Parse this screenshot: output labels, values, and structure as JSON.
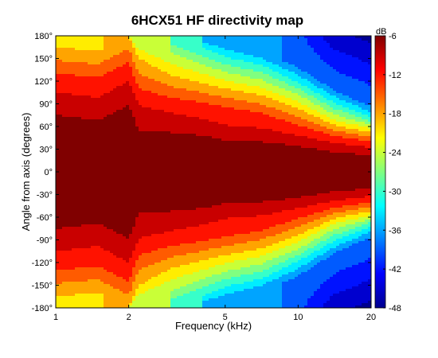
{
  "chart_data": {
    "type": "heatmap",
    "title": "6HCX51 HF directivity map",
    "xlabel": "Frequency (kHz)",
    "ylabel": "Angle from axis (degrees)",
    "x_scale": "log",
    "xlim": [
      1,
      20
    ],
    "ylim": [
      -180,
      180
    ],
    "x_ticks": [
      1,
      2,
      5,
      10,
      20
    ],
    "x_tick_labels": [
      "1",
      "2",
      "5",
      "10",
      "20"
    ],
    "y_ticks": [
      180,
      150,
      120,
      90,
      60,
      30,
      0,
      -30,
      -60,
      -90,
      -120,
      -150,
      -180
    ],
    "y_tick_labels": [
      "180°",
      "150°",
      "120°",
      "90°",
      "60°",
      "30°",
      "0°",
      "-30°",
      "-60°",
      "-90°",
      "-120°",
      "-150°",
      "-180°"
    ],
    "colorbar": {
      "unit": "dB",
      "range": [
        -48,
        -6
      ],
      "ticks": [
        -6,
        -12,
        -18,
        -24,
        -30,
        -36,
        -42,
        -48
      ],
      "tick_labels": [
        "-6",
        "-12",
        "-18",
        "-24",
        "-30",
        "-36",
        "-42",
        "-48"
      ]
    },
    "colormap": [
      "#00008f",
      "#0000ff",
      "#0080ff",
      "#00ffff",
      "#80ff80",
      "#ffff00",
      "#ff8000",
      "#ff0000",
      "#800000"
    ],
    "contour_bands_db": [
      -6,
      -9,
      -12,
      -15,
      -18,
      -21,
      -24,
      -27,
      -30,
      -33,
      -36,
      -39,
      -42,
      -45,
      -48
    ],
    "beamwidth_boundaries_deg": {
      "frequency_khz": [
        1,
        1.5,
        2,
        2.2,
        3,
        4,
        5,
        7,
        10,
        14,
        20
      ],
      "minus_6db": [
        75,
        68,
        88,
        55,
        52,
        48,
        42,
        40,
        34,
        26,
        22
      ],
      "minus_9db": [
        105,
        98,
        120,
        88,
        78,
        70,
        62,
        58,
        48,
        38,
        32
      ],
      "minus_12db": [
        130,
        125,
        145,
        110,
        98,
        92,
        86,
        78,
        62,
        48,
        40
      ],
      "minus_18db": [
        165,
        160,
        180,
        150,
        128,
        118,
        110,
        102,
        84,
        62,
        52
      ],
      "minus_24db": [
        180,
        180,
        180,
        175,
        158,
        142,
        132,
        122,
        102,
        76,
        62
      ],
      "minus_30db": [
        180,
        180,
        180,
        180,
        180,
        165,
        152,
        142,
        118,
        92,
        72
      ],
      "minus_36db": [
        180,
        180,
        180,
        180,
        180,
        180,
        172,
        160,
        138,
        108,
        86
      ]
    },
    "rear_level_db": {
      "frequency_khz": [
        1,
        1.5,
        2,
        2.2,
        3,
        4,
        5,
        7,
        10,
        14,
        20
      ],
      "level_at_180deg": [
        -18,
        -20,
        -9,
        -21,
        -24,
        -27,
        -30,
        -33,
        -38,
        -44,
        -46
      ]
    }
  }
}
